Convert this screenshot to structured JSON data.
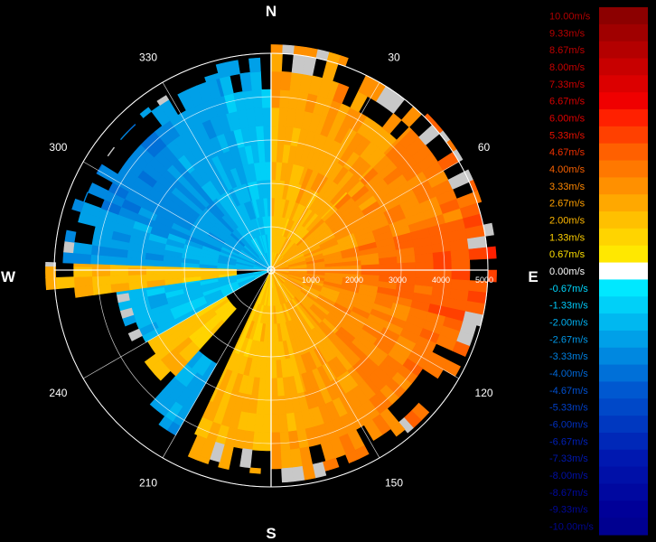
{
  "chart_data": {
    "type": "heatmap",
    "projection": "polar",
    "compass": {
      "north": "N",
      "east": "E",
      "south": "S",
      "west": "W"
    },
    "bearing_ticks": [
      "30",
      "60",
      "120",
      "150",
      "210",
      "240",
      "300",
      "330"
    ],
    "bearing_values": [
      30,
      60,
      120,
      150,
      210,
      240,
      300,
      330
    ],
    "range_ticks": [
      "1000",
      "2000",
      "3000",
      "4000",
      "5000"
    ],
    "range_values": [
      1000,
      2000,
      3000,
      4000,
      5000
    ],
    "rlim": [
      0,
      5000
    ],
    "grid": true,
    "colorbar": {
      "labels": [
        "10.00m/s",
        "9.33m/s",
        "8.67m/s",
        "8.00m/s",
        "7.33m/s",
        "6.67m/s",
        "6.00m/s",
        "5.33m/s",
        "4.67m/s",
        "4.00m/s",
        "3.33m/s",
        "2.67m/s",
        "2.00m/s",
        "1.33m/s",
        "0.67m/s",
        "0.00m/s",
        "-0.67m/s",
        "-1.33m/s",
        "-2.00m/s",
        "-2.67m/s",
        "-3.33m/s",
        "-4.00m/s",
        "-4.67m/s",
        "-5.33m/s",
        "-6.00m/s",
        "-6.67m/s",
        "-7.33m/s",
        "-8.00m/s",
        "-8.67m/s",
        "-9.33m/s",
        "-10.00m/s"
      ],
      "values": [
        10.0,
        9.33,
        8.67,
        8.0,
        7.33,
        6.67,
        6.0,
        5.33,
        4.67,
        4.0,
        3.33,
        2.67,
        2.0,
        1.33,
        0.67,
        0.0,
        -0.67,
        -1.33,
        -2.0,
        -2.67,
        -3.33,
        -4.0,
        -4.67,
        -5.33,
        -6.0,
        -6.67,
        -7.33,
        -8.0,
        -8.67,
        -9.33,
        -10.0
      ],
      "colors": [
        "#8c0000",
        "#a00000",
        "#b40000",
        "#c80000",
        "#dc0000",
        "#f00000",
        "#ff2000",
        "#ff4000",
        "#ff6000",
        "#ff7800",
        "#ff9000",
        "#ffa800",
        "#ffc000",
        "#ffd400",
        "#ffe800",
        "#ffffff",
        "#00e8ff",
        "#00d0f8",
        "#00b8f0",
        "#00a0e8",
        "#0088e0",
        "#0070d8",
        "#0058d0",
        "#0048c8",
        "#0038c0",
        "#0028b8",
        "#0018b0",
        "#0010a8",
        "#0008a0",
        "#000098",
        "#000090"
      ],
      "label_colors": [
        "#b00000",
        "#b80000",
        "#c00000",
        "#c80000",
        "#d00000",
        "#d80000",
        "#e00000",
        "#e81000",
        "#f03000",
        "#f86000",
        "#ff8800",
        "#ffa000",
        "#ffb800",
        "#ffd000",
        "#ffe000",
        "#ffffff",
        "#00d8ff",
        "#00c8f8",
        "#00b0f0",
        "#0098e8",
        "#0080e0",
        "#0068d8",
        "#0050d0",
        "#0040c8",
        "#0030c0",
        "#0020b8",
        "#0018b0",
        "#0010a8",
        "#000aa0",
        "#000898",
        "#000690"
      ]
    },
    "sectors": [
      {
        "from": 0,
        "to": 20,
        "range": [
          0,
          5200
        ],
        "velocity": 2.4
      },
      {
        "from": 20,
        "to": 45,
        "range": [
          0,
          5000
        ],
        "velocity": 2.8
      },
      {
        "from": 45,
        "to": 75,
        "range": [
          0,
          5100
        ],
        "velocity": 3.4
      },
      {
        "from": 75,
        "to": 105,
        "range": [
          0,
          5200
        ],
        "velocity": 4.2
      },
      {
        "from": 105,
        "to": 140,
        "range": [
          0,
          4900
        ],
        "velocity": 3.6
      },
      {
        "from": 140,
        "to": 165,
        "range": [
          0,
          4800
        ],
        "velocity": 3.0
      },
      {
        "from": 165,
        "to": 180,
        "range": [
          0,
          4900
        ],
        "velocity": 2.5
      },
      {
        "from": 180,
        "to": 205,
        "range": [
          0,
          4700
        ],
        "velocity": 2.2
      },
      {
        "from": 210,
        "to": 222,
        "range": [
          2500,
          4400
        ],
        "velocity": -2.4
      },
      {
        "from": 222,
        "to": 240,
        "range": [
          1200,
          3600
        ],
        "velocity": 2.0
      },
      {
        "from": 240,
        "to": 262,
        "range": [
          0,
          3600
        ],
        "velocity": -2.0
      },
      {
        "from": 262,
        "to": 272,
        "range": [
          800,
          5200
        ],
        "velocity": 2.0
      },
      {
        "from": 272,
        "to": 290,
        "range": [
          0,
          4800
        ],
        "velocity": -2.6
      },
      {
        "from": 290,
        "to": 320,
        "range": [
          0,
          4600
        ],
        "velocity": -3.2
      },
      {
        "from": 320,
        "to": 345,
        "range": [
          0,
          4700
        ],
        "velocity": -2.4
      },
      {
        "from": 345,
        "to": 360,
        "range": [
          0,
          4900
        ],
        "velocity": -1.8
      }
    ]
  }
}
